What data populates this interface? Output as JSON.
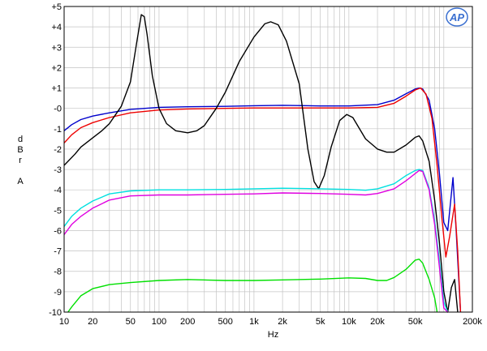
{
  "chart_data": {
    "type": "line",
    "title": "",
    "xlabel": "Hz",
    "ylabel_lines": [
      "d",
      "B",
      "r",
      "",
      "A"
    ],
    "x_scale": "log",
    "xlim": [
      10,
      200000
    ],
    "ylim": [
      -10,
      5
    ],
    "grid": true,
    "x_ticks": [
      {
        "value": 10,
        "label": "10"
      },
      {
        "value": 20,
        "label": "20"
      },
      {
        "value": 50,
        "label": "50"
      },
      {
        "value": 100,
        "label": "100"
      },
      {
        "value": 200,
        "label": "200"
      },
      {
        "value": 500,
        "label": "500"
      },
      {
        "value": 1000,
        "label": "1k"
      },
      {
        "value": 2000,
        "label": "2k"
      },
      {
        "value": 5000,
        "label": "5k"
      },
      {
        "value": 10000,
        "label": "10k"
      },
      {
        "value": 20000,
        "label": "20k"
      },
      {
        "value": 50000,
        "label": "50k"
      },
      {
        "value": 200000,
        "label": "200k"
      }
    ],
    "y_ticks": [
      {
        "value": 5,
        "label": "+5"
      },
      {
        "value": 4,
        "label": "+4"
      },
      {
        "value": 3,
        "label": "+3"
      },
      {
        "value": 2,
        "label": "+2"
      },
      {
        "value": 1,
        "label": "+1"
      },
      {
        "value": 0,
        "label": "-0"
      },
      {
        "value": -1,
        "label": "-1"
      },
      {
        "value": -2,
        "label": "-2"
      },
      {
        "value": -3,
        "label": "-3"
      },
      {
        "value": -4,
        "label": "-4"
      },
      {
        "value": -5,
        "label": "-5"
      },
      {
        "value": -6,
        "label": "-6"
      },
      {
        "value": -7,
        "label": "-7"
      },
      {
        "value": -8,
        "label": "-8"
      },
      {
        "value": -9,
        "label": "-9"
      },
      {
        "value": -10,
        "label": "-10"
      }
    ],
    "series": [
      {
        "color": "#0000cc",
        "points": [
          [
            10,
            -1.1
          ],
          [
            12,
            -0.8
          ],
          [
            15,
            -0.55
          ],
          [
            20,
            -0.38
          ],
          [
            30,
            -0.22
          ],
          [
            50,
            -0.05
          ],
          [
            100,
            0.05
          ],
          [
            200,
            0.08
          ],
          [
            500,
            0.1
          ],
          [
            1000,
            0.13
          ],
          [
            2000,
            0.15
          ],
          [
            5000,
            0.12
          ],
          [
            10000,
            0.12
          ],
          [
            20000,
            0.18
          ],
          [
            30000,
            0.4
          ],
          [
            40000,
            0.72
          ],
          [
            50000,
            0.95
          ],
          [
            55000,
            1.0
          ],
          [
            60000,
            0.95
          ],
          [
            70000,
            0.4
          ],
          [
            80000,
            -1.0
          ],
          [
            90000,
            -3.2
          ],
          [
            100000,
            -5.6
          ],
          [
            110000,
            -6.0
          ],
          [
            125000,
            -3.4
          ],
          [
            135000,
            -6.0
          ],
          [
            150000,
            -10.0
          ]
        ]
      },
      {
        "color": "#ee0000",
        "points": [
          [
            10,
            -1.7
          ],
          [
            12,
            -1.3
          ],
          [
            15,
            -0.95
          ],
          [
            20,
            -0.7
          ],
          [
            30,
            -0.45
          ],
          [
            50,
            -0.22
          ],
          [
            100,
            -0.08
          ],
          [
            200,
            -0.03
          ],
          [
            500,
            0.0
          ],
          [
            1000,
            0.02
          ],
          [
            2000,
            0.02
          ],
          [
            5000,
            0.02
          ],
          [
            10000,
            0.02
          ],
          [
            20000,
            0.05
          ],
          [
            30000,
            0.25
          ],
          [
            40000,
            0.6
          ],
          [
            50000,
            0.9
          ],
          [
            57000,
            1.0
          ],
          [
            65000,
            0.7
          ],
          [
            75000,
            -0.5
          ],
          [
            85000,
            -2.8
          ],
          [
            95000,
            -5.3
          ],
          [
            105000,
            -7.3
          ],
          [
            115000,
            -6.3
          ],
          [
            130000,
            -4.7
          ],
          [
            140000,
            -7.0
          ],
          [
            150000,
            -10.0
          ]
        ]
      },
      {
        "color": "#000000",
        "points": [
          [
            10,
            -2.8
          ],
          [
            13,
            -2.25
          ],
          [
            15,
            -1.9
          ],
          [
            20,
            -1.45
          ],
          [
            25,
            -1.1
          ],
          [
            30,
            -0.75
          ],
          [
            40,
            0.1
          ],
          [
            50,
            1.3
          ],
          [
            58,
            3.2
          ],
          [
            65,
            4.6
          ],
          [
            70,
            4.5
          ],
          [
            75,
            3.6
          ],
          [
            85,
            1.6
          ],
          [
            100,
            0.0
          ],
          [
            120,
            -0.75
          ],
          [
            150,
            -1.1
          ],
          [
            200,
            -1.2
          ],
          [
            250,
            -1.1
          ],
          [
            300,
            -0.85
          ],
          [
            400,
            0.0
          ],
          [
            500,
            0.8
          ],
          [
            700,
            2.3
          ],
          [
            1000,
            3.5
          ],
          [
            1300,
            4.15
          ],
          [
            1500,
            4.25
          ],
          [
            1800,
            4.1
          ],
          [
            2200,
            3.3
          ],
          [
            3000,
            1.2
          ],
          [
            3700,
            -2.0
          ],
          [
            4300,
            -3.6
          ],
          [
            4800,
            -3.95
          ],
          [
            5500,
            -3.3
          ],
          [
            6500,
            -1.9
          ],
          [
            8000,
            -0.6
          ],
          [
            9500,
            -0.3
          ],
          [
            11000,
            -0.45
          ],
          [
            15000,
            -1.5
          ],
          [
            20000,
            -2.0
          ],
          [
            25000,
            -2.15
          ],
          [
            30000,
            -2.15
          ],
          [
            40000,
            -1.8
          ],
          [
            50000,
            -1.42
          ],
          [
            55000,
            -1.35
          ],
          [
            60000,
            -1.6
          ],
          [
            70000,
            -2.6
          ],
          [
            80000,
            -4.5
          ],
          [
            90000,
            -6.6
          ],
          [
            100000,
            -9.0
          ],
          [
            110000,
            -10.0
          ],
          [
            120000,
            -8.8
          ],
          [
            130000,
            -8.4
          ],
          [
            140000,
            -10.0
          ]
        ]
      },
      {
        "color": "#00e0e0",
        "points": [
          [
            10,
            -5.8
          ],
          [
            12,
            -5.3
          ],
          [
            15,
            -4.9
          ],
          [
            20,
            -4.55
          ],
          [
            30,
            -4.2
          ],
          [
            50,
            -4.05
          ],
          [
            100,
            -4.0
          ],
          [
            200,
            -4.0
          ],
          [
            500,
            -3.98
          ],
          [
            1000,
            -3.95
          ],
          [
            2000,
            -3.92
          ],
          [
            5000,
            -3.95
          ],
          [
            10000,
            -3.98
          ],
          [
            15000,
            -4.02
          ],
          [
            20000,
            -3.95
          ],
          [
            30000,
            -3.7
          ],
          [
            40000,
            -3.3
          ],
          [
            50000,
            -3.05
          ],
          [
            55000,
            -3.0
          ],
          [
            60000,
            -3.05
          ],
          [
            70000,
            -3.9
          ],
          [
            80000,
            -5.5
          ],
          [
            90000,
            -7.5
          ],
          [
            100000,
            -9.5
          ],
          [
            110000,
            -10.0
          ]
        ]
      },
      {
        "color": "#e000e0",
        "points": [
          [
            10,
            -6.2
          ],
          [
            12,
            -5.7
          ],
          [
            15,
            -5.3
          ],
          [
            20,
            -4.9
          ],
          [
            30,
            -4.5
          ],
          [
            50,
            -4.3
          ],
          [
            100,
            -4.25
          ],
          [
            200,
            -4.25
          ],
          [
            500,
            -4.22
          ],
          [
            1000,
            -4.2
          ],
          [
            2000,
            -4.15
          ],
          [
            5000,
            -4.18
          ],
          [
            10000,
            -4.22
          ],
          [
            15000,
            -4.25
          ],
          [
            20000,
            -4.18
          ],
          [
            30000,
            -3.95
          ],
          [
            40000,
            -3.55
          ],
          [
            50000,
            -3.2
          ],
          [
            55000,
            -3.05
          ],
          [
            60000,
            -3.1
          ],
          [
            70000,
            -4.0
          ],
          [
            80000,
            -5.7
          ],
          [
            90000,
            -7.8
          ],
          [
            100000,
            -9.8
          ],
          [
            110000,
            -10.0
          ]
        ]
      },
      {
        "color": "#00e000",
        "points": [
          [
            11,
            -10.0
          ],
          [
            12,
            -9.75
          ],
          [
            15,
            -9.2
          ],
          [
            20,
            -8.85
          ],
          [
            30,
            -8.65
          ],
          [
            50,
            -8.55
          ],
          [
            100,
            -8.45
          ],
          [
            200,
            -8.4
          ],
          [
            500,
            -8.45
          ],
          [
            1000,
            -8.45
          ],
          [
            2000,
            -8.42
          ],
          [
            5000,
            -8.38
          ],
          [
            10000,
            -8.32
          ],
          [
            15000,
            -8.35
          ],
          [
            20000,
            -8.45
          ],
          [
            25000,
            -8.45
          ],
          [
            30000,
            -8.3
          ],
          [
            40000,
            -7.9
          ],
          [
            50000,
            -7.45
          ],
          [
            55000,
            -7.4
          ],
          [
            60000,
            -7.6
          ],
          [
            70000,
            -8.4
          ],
          [
            80000,
            -9.3
          ],
          [
            85000,
            -10.0
          ]
        ]
      }
    ]
  },
  "logo": {
    "text": "AP"
  }
}
